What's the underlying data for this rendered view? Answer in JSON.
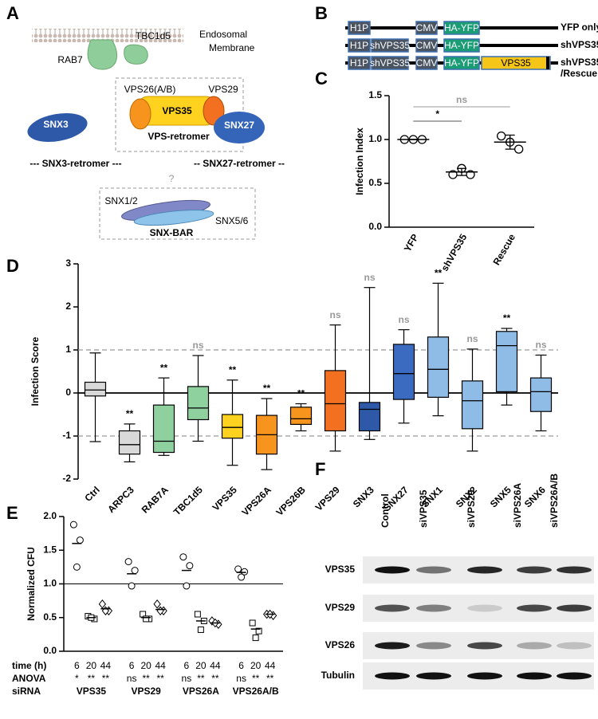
{
  "panel_labels": [
    "A",
    "B",
    "C",
    "D",
    "E",
    "F"
  ],
  "panel_a": {
    "rab7": "RAB7",
    "tbc1d5": "TBC1d5",
    "membrane_lines": [
      "Endosomal",
      "Membrane"
    ],
    "vps26": "VPS26(A/B)",
    "vps29": "VPS29",
    "vps35": "VPS35",
    "retromer": "VPS-retromer",
    "snx3": "SNX3",
    "snx27": "SNX27",
    "snx3_retromer": "--- SNX3-retromer ---",
    "snx27_retromer": "-- SNX27-retromer --",
    "question": "?",
    "snx12": "SNX1/2",
    "snx56": "SNX5/6",
    "snx_bar": "SNX-BAR"
  },
  "panel_b": {
    "constructs": [
      {
        "name_lines": [
          "YFP only"
        ],
        "parts": [
          "H1P",
          null,
          "CMV",
          "HA-YFP",
          null
        ]
      },
      {
        "name_lines": [
          "shVPS35"
        ],
        "parts": [
          "H1P",
          "shVPS35",
          "CMV",
          "HA-YFP",
          null
        ]
      },
      {
        "name_lines": [
          "shVPS35",
          "/Rescue"
        ],
        "parts": [
          "H1P",
          "shVPS35",
          "CMV",
          "HA-YFP",
          "VPS35"
        ]
      }
    ]
  },
  "chart_data": [
    {
      "type": "dot",
      "ylabel": "Infection Index",
      "categories": [
        "YFP",
        "shVPS35",
        "Rescue"
      ],
      "points": [
        [
          1,
          1,
          1
        ],
        [
          0.6,
          0.67,
          0.6
        ],
        [
          1.04,
          0.97,
          0.89
        ]
      ],
      "means": [
        1,
        0.63,
        0.97
      ],
      "errors": [
        0,
        0.04,
        0.08
      ],
      "ylim": [
        0,
        1.5
      ],
      "yticks": [
        {
          "value": 0,
          "label": "0.0"
        },
        {
          "value": 0.5,
          "label": "0.5"
        },
        {
          "value": 1,
          "label": "1.0"
        },
        {
          "value": 1.5,
          "label": "1.5"
        }
      ],
      "comparisons": [
        {
          "label": "*",
          "groups": [
            "YFP",
            "shVPS35"
          ]
        },
        {
          "label": "ns",
          "groups": [
            "YFP",
            "Rescue"
          ],
          "color": "#999999"
        }
      ]
    },
    {
      "type": "box",
      "ylabel": "Infection Score",
      "categories": [
        "Ctrl",
        "ARPC3",
        "RAB7A",
        "TBC1d5",
        "VPS35",
        "VPS26A",
        "VPS26B",
        "VPS29",
        "SNX3",
        "SNX27",
        "SNX1",
        "SNX2",
        "SNX5",
        "SNX6"
      ],
      "colors": [
        "#d9d9d9",
        "#d9d9d9",
        "#8fd19e",
        "#8fd19e",
        "#ffd21f",
        "#f7941d",
        "#f7941d",
        "#f37021",
        "#2d59a8",
        "#3a6bc0",
        "#8fbce6",
        "#8fbce6",
        "#8fbce6",
        "#8fbce6"
      ],
      "whisker_low": [
        -1.13,
        -1.6,
        -1.45,
        -1.12,
        -1.68,
        -1.78,
        -0.88,
        -1.35,
        -1.08,
        -0.7,
        -0.53,
        -1.35,
        -0.28,
        -0.88
      ],
      "q1": [
        -0.07,
        -1.42,
        -1.38,
        -0.62,
        -1.05,
        -1.42,
        -0.73,
        -0.88,
        -0.88,
        -0.15,
        -0.1,
        -0.83,
        0.03,
        -0.43
      ],
      "median": [
        0.07,
        -1.2,
        -1.12,
        -0.35,
        -0.8,
        -0.97,
        -0.6,
        -0.25,
        -0.38,
        0.45,
        0.55,
        -0.18,
        1.1,
        0.03
      ],
      "q3": [
        0.25,
        -0.88,
        -0.28,
        0.15,
        -0.5,
        -0.52,
        -0.33,
        0.52,
        -0.22,
        1.13,
        1.3,
        0.28,
        1.43,
        0.35
      ],
      "whisker_high": [
        0.93,
        -0.72,
        0.35,
        0.87,
        0.3,
        -0.13,
        -0.25,
        1.58,
        2.45,
        1.47,
        2.55,
        1.02,
        1.5,
        0.88
      ],
      "annotations": [
        null,
        "**",
        "**",
        "ns",
        "**",
        "**",
        "**",
        "ns",
        "ns",
        "ns",
        "**",
        "ns",
        "**",
        "ns"
      ],
      "annotation_colors": [
        null,
        "#000000",
        "#000000",
        "#999999",
        "#000000",
        "#000000",
        "#000000",
        "#999999",
        "#999999",
        "#999999",
        "#000000",
        "#999999",
        "#000000",
        "#999999"
      ],
      "ylim": [
        -2,
        3
      ],
      "yticks": [
        -2,
        -1,
        0,
        1,
        2,
        3
      ],
      "reference_lines": [
        -1,
        1
      ],
      "zero_line": 0
    },
    {
      "type": "grouped_dot",
      "ylabel": "Normalized CFU",
      "row_titles": [
        "time (h)",
        "ANOVA",
        "siRNA"
      ],
      "times": [
        6,
        20,
        44
      ],
      "markers": [
        "circle",
        "square",
        "diamond"
      ],
      "groups": [
        {
          "name": "VPS35",
          "anova": [
            "*",
            "**",
            "**"
          ],
          "points": [
            [
              1.88,
              1.65,
              1.25
            ],
            [
              0.52,
              0.48,
              0.5
            ],
            [
              0.7,
              0.6,
              0.6
            ]
          ],
          "means": [
            1.6,
            0.5,
            0.63
          ]
        },
        {
          "name": "VPS29",
          "anova": [
            "ns",
            "**",
            "**"
          ],
          "points": [
            [
              1.33,
              1.2,
              0.97
            ],
            [
              0.55,
              0.48,
              0.48
            ],
            [
              0.7,
              0.6,
              0.6
            ]
          ],
          "means": [
            1.15,
            0.5,
            0.62
          ]
        },
        {
          "name": "VPS26A",
          "anova": [
            "ns",
            "**",
            "**"
          ],
          "points": [
            [
              1.4,
              1.27,
              0.97
            ],
            [
              0.55,
              0.45,
              0.32
            ],
            [
              0.45,
              0.4,
              0.42
            ]
          ],
          "means": [
            1.2,
            0.45,
            0.42
          ]
        },
        {
          "name": "VPS26A/B",
          "anova": [
            "ns",
            "**",
            "**"
          ],
          "points": [
            [
              1.22,
              1.18,
              1.1
            ],
            [
              0.42,
              0.3,
              0.2
            ],
            [
              0.55,
              0.53,
              0.55
            ]
          ],
          "means": [
            1.17,
            0.33,
            0.55
          ]
        }
      ],
      "ylim": [
        0,
        2
      ],
      "yticks": [
        {
          "value": 0,
          "label": "0.0"
        },
        {
          "value": 0.5,
          "label": "0.5"
        },
        {
          "value": 1,
          "label": "1.0"
        },
        {
          "value": 1.5,
          "label": "1.5"
        },
        {
          "value": 2,
          "label": "2.0"
        }
      ],
      "reference_line": 1
    }
  ],
  "blot": {
    "lanes": [
      "Control",
      "siVPS35",
      "siVPS29",
      "siVPS26A",
      "siVPS26A/B"
    ],
    "proteins": [
      "VPS35",
      "VPS29",
      "VPS26",
      "Tubulin"
    ]
  }
}
